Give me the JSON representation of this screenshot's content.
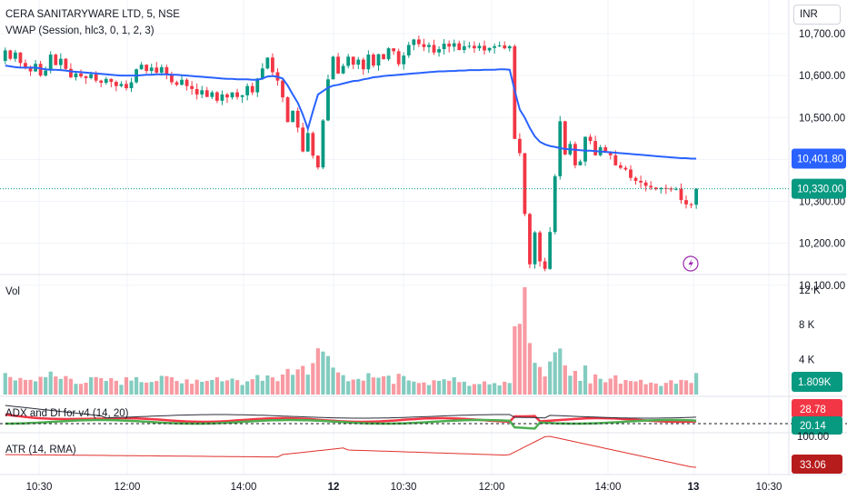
{
  "currency": "INR",
  "chart_data": {
    "type": "candlestick",
    "title": "CERA SANITARYWARE LTD, 5, NSE",
    "vwap_label": "VWAP (Session, hlc3, 0, 1, 2, 3)",
    "price_axis": {
      "ticks": [
        "10,700.00",
        "10,600.00",
        "10,500.00",
        "10,400.00",
        "10,300.00",
        "10,200.00",
        "10,100.00"
      ],
      "values": [
        10700,
        10600,
        10500,
        10400,
        10300,
        10200,
        10100
      ]
    },
    "time_axis": {
      "labels": [
        "10:30",
        "12:00",
        "14:00",
        "12",
        "10:30",
        "12:00",
        "14:00",
        "13",
        "10:30"
      ],
      "bold": [
        "12",
        "13"
      ]
    },
    "last_price": {
      "label": "10,330.00",
      "value": 10330,
      "color": "#089981"
    },
    "vwap_price": {
      "label": "10,401.80",
      "value": 10401.8,
      "color": "#2962ff"
    },
    "colors": {
      "up": "#089981",
      "down": "#f23645",
      "vwap": "#2962ff",
      "adx": "#2a2e39",
      "di_plus": "#4caf50",
      "di_minus": "#f23645",
      "atr": "#e0302b"
    },
    "closes": [
      10660,
      10640,
      10655,
      10630,
      10620,
      10610,
      10628,
      10600,
      10612,
      10650,
      10625,
      10640,
      10616,
      10596,
      10605,
      10598,
      10594,
      10603,
      10588,
      10583,
      10592,
      10585,
      10575,
      10580,
      10570,
      10584,
      10615,
      10626,
      10611,
      10619,
      10607,
      10620,
      10603,
      10584,
      10578,
      10590,
      10575,
      10568,
      10555,
      10565,
      10549,
      10560,
      10540,
      10555,
      10548,
      10560,
      10549,
      10553,
      10575,
      10560,
      10593,
      10617,
      10643,
      10608,
      10588,
      10548,
      10489,
      10516,
      10476,
      10419,
      10463,
      10409,
      10381,
      10493,
      10591,
      10645,
      10605,
      10623,
      10645,
      10626,
      10638,
      10615,
      10650,
      10624,
      10651,
      10639,
      10665,
      10658,
      10627,
      10648,
      10673,
      10686,
      10675,
      10668,
      10673,
      10655,
      10663,
      10676,
      10669,
      10677,
      10661,
      10670,
      10671,
      10665,
      10671,
      10660,
      10666,
      10670,
      10672,
      10665,
      10670,
      10449,
      10415,
      10270,
      10150,
      10226,
      10157,
      10139,
      10227,
      10360,
      10491,
      10412,
      10437,
      10386,
      10395,
      10454,
      10444,
      10410,
      10429,
      10418,
      10410,
      10386,
      10380,
      10376,
      10356,
      10349,
      10345,
      10337,
      10333,
      10329,
      10332,
      10331,
      10328,
      10330,
      10303,
      10293,
      10292,
      10330
    ],
    "vwap": [
      10624,
      10622,
      10620,
      10619,
      10619,
      10619,
      10619,
      10617,
      10615,
      10614,
      10614,
      10613,
      10612,
      10610,
      10609,
      10608,
      10607,
      10606,
      10605,
      10604,
      10603,
      10602,
      10601,
      10600,
      10600,
      10600,
      10600,
      10601,
      10602,
      10602,
      10603,
      10603,
      10603,
      10602,
      10602,
      10601,
      10600,
      10599,
      10598,
      10597,
      10596,
      10595,
      10594,
      10593,
      10592,
      10592,
      10591,
      10591,
      10591,
      10590,
      10590,
      10593,
      10598,
      10599,
      10597,
      10593,
      10576,
      10555,
      10535,
      10507,
      10473,
      10515,
      10555,
      10563,
      10571,
      10576,
      10578,
      10581,
      10584,
      10587,
      10588,
      10591,
      10593,
      10596,
      10597,
      10599,
      10600,
      10601,
      10602,
      10603,
      10604,
      10605,
      10606,
      10607,
      10608,
      10609,
      10610,
      10610,
      10611,
      10611,
      10612,
      10612,
      10613,
      10613,
      10613,
      10614,
      10614,
      10614,
      10615,
      10615,
      10614,
      10565,
      10519,
      10500,
      10475,
      10455,
      10442,
      10436,
      10432,
      10430,
      10427,
      10425,
      10424,
      10423,
      10422,
      10421,
      10421,
      10420,
      10419,
      10418,
      10417,
      10416,
      10415,
      10414,
      10413,
      10412,
      10411,
      10410,
      10409,
      10408,
      10407,
      10406,
      10405,
      10404,
      10403,
      10403,
      10402,
      10402
    ],
    "volume": {
      "label": "Vol",
      "last_label": "1.809K",
      "last_value": 1809,
      "ticks": [
        "12 K",
        "8 K",
        "4 K"
      ],
      "tick_values": [
        12000,
        8000,
        4000
      ]
    },
    "adx": {
      "label": "ADX and DI for v4 (14, 20)",
      "di_minus_label": "28.78",
      "di_plus_label": "20.14",
      "threshold_label": "100.00"
    },
    "atr": {
      "label": "ATR (14, RMA)",
      "last_label": "33.06"
    }
  }
}
